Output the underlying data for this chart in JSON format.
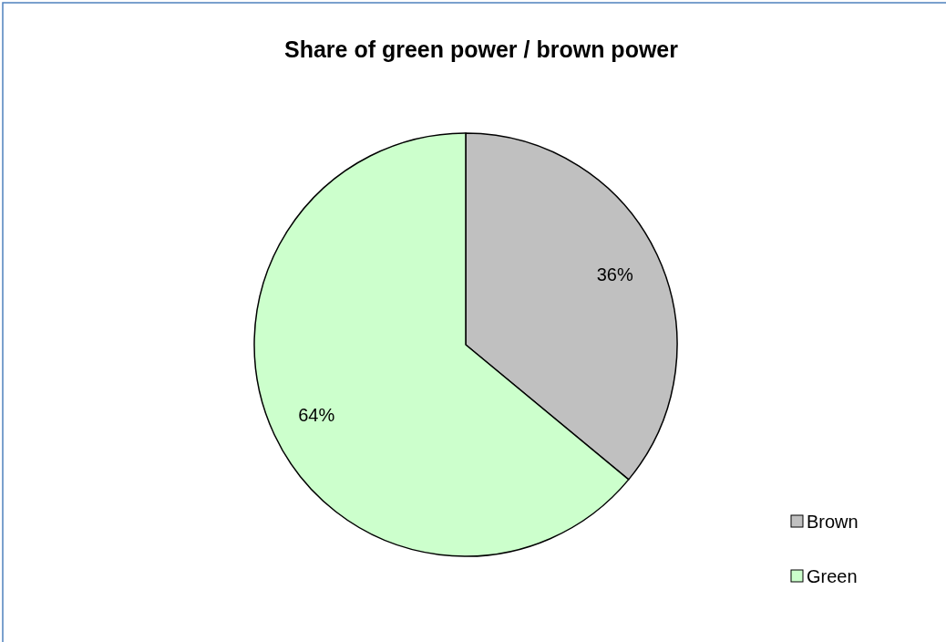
{
  "chart_data": {
    "type": "pie",
    "title": "Share of green power / brown power",
    "categories": [
      "Brown",
      "Green"
    ],
    "values": [
      36,
      64
    ],
    "colors": [
      "#c0c0c0",
      "#ccffcc"
    ],
    "value_labels": [
      "36%",
      "64%"
    ],
    "legend": "bottom right"
  }
}
